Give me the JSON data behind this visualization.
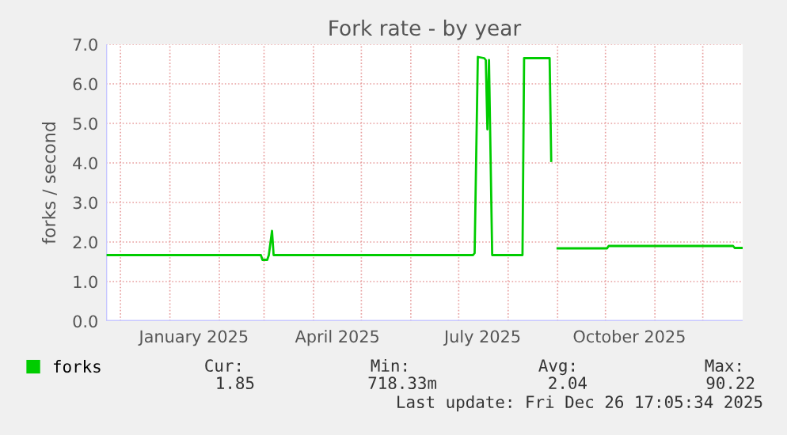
{
  "chart_data": {
    "type": "line",
    "title": "Fork rate - by year",
    "ylabel": "forks / second",
    "xlim": [
      "2024-11-22",
      "2025-12-26"
    ],
    "xticks": [
      {
        "value": "2025-01-16",
        "label": "January 2025"
      },
      {
        "value": "2025-04-16",
        "label": "April 2025"
      },
      {
        "value": "2025-07-16",
        "label": "July 2025"
      },
      {
        "value": "2025-10-16",
        "label": "October 2025"
      }
    ],
    "ylim": [
      0,
      7
    ],
    "yticks": [
      {
        "value": 0,
        "label": "0.0"
      },
      {
        "value": 1,
        "label": "1.0"
      },
      {
        "value": 2,
        "label": "2.0"
      },
      {
        "value": 3,
        "label": "3.0"
      },
      {
        "value": 4,
        "label": "4.0"
      },
      {
        "value": 5,
        "label": "5.0"
      },
      {
        "value": 6,
        "label": "6.0"
      },
      {
        "value": 7,
        "label": "7.0"
      }
    ],
    "grid": true,
    "legend": "bottom",
    "marker": "none",
    "line_style": "solid",
    "series": [
      {
        "name": "forks",
        "color": "#00cc00",
        "x": [
          "2024-11-23",
          "2025-02-27",
          "2025-02-28",
          "2025-03-03",
          "2025-03-04",
          "2025-03-06",
          "2025-03-07",
          "2025-07-10",
          "2025-07-11",
          "2025-07-13",
          "2025-07-17",
          "2025-07-18",
          "2025-07-19",
          "2025-07-20",
          "2025-07-22",
          "2025-08-10",
          "2025-08-11",
          "2025-08-27",
          "2025-08-28",
          "2025-08-30",
          "2025-09-01",
          "2025-10-02",
          "2025-10-03",
          "2025-12-20",
          "2025-12-21",
          "2025-12-26"
        ],
        "values": [
          1.67,
          1.67,
          1.55,
          1.55,
          1.67,
          2.28,
          1.67,
          1.67,
          1.72,
          6.68,
          6.65,
          6.6,
          4.85,
          6.6,
          1.67,
          1.67,
          6.65,
          6.65,
          4.05,
          null,
          1.84,
          1.84,
          1.9,
          1.9,
          1.85,
          1.85
        ]
      }
    ],
    "annotations": [
      "Cur:",
      "1.85",
      "Min:",
      "718.33m",
      "Avg:",
      "2.04",
      "Max:",
      "90.22",
      "Last update: Fri Dec 26 17:05:34 2025"
    ]
  }
}
